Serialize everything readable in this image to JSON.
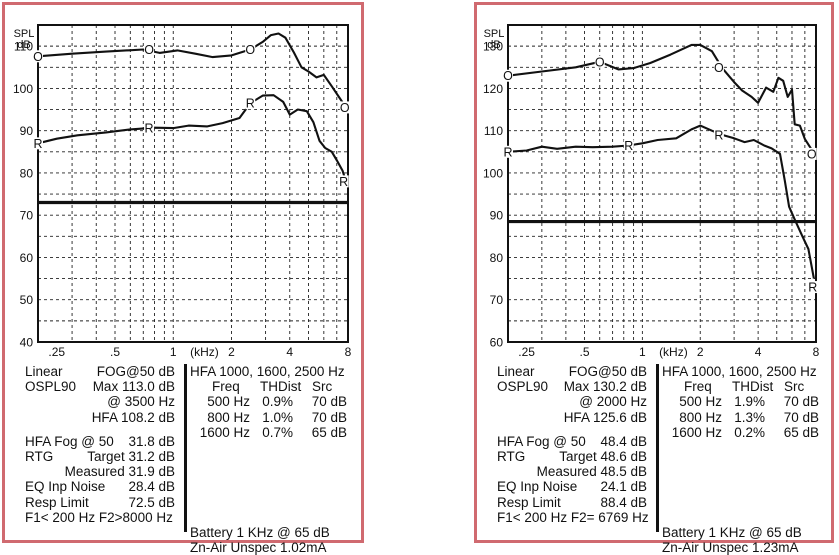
{
  "panels": [
    {
      "id": "left",
      "chart_data": {
        "type": "line",
        "ylabel": "SPL\ndB",
        "xlabel": "(kHz)",
        "xscale": "log",
        "xlim": [
          0.2,
          8
        ],
        "ylim": [
          40,
          115
        ],
        "y_ticks": [
          40,
          50,
          60,
          70,
          80,
          90,
          100,
          110
        ],
        "x_ticks": [
          {
            "value": 0.25,
            "label": ".25"
          },
          {
            "value": 0.5,
            "label": ".5"
          },
          {
            "value": 1,
            "label": "1"
          },
          {
            "value": 2,
            "label": "2"
          },
          {
            "value": 4,
            "label": "4"
          },
          {
            "value": 8,
            "label": "8"
          }
        ],
        "grid": true,
        "hline": 73,
        "series": [
          {
            "name": "O",
            "points": [
              [
                0.2,
                107.6
              ],
              [
                0.3,
                108.2
              ],
              [
                0.45,
                108.7
              ],
              [
                0.7,
                109.2
              ],
              [
                0.85,
                108.4
              ],
              [
                1.05,
                109.0
              ],
              [
                1.3,
                108.2
              ],
              [
                1.6,
                107.4
              ],
              [
                2.0,
                107.8
              ],
              [
                2.5,
                109.2
              ],
              [
                2.9,
                111.0
              ],
              [
                3.2,
                112.6
              ],
              [
                3.5,
                113.0
              ],
              [
                3.8,
                112.0
              ],
              [
                4.2,
                108.5
              ],
              [
                4.6,
                105.0
              ],
              [
                5.0,
                104.0
              ],
              [
                5.5,
                102.6
              ],
              [
                6.0,
                103.2
              ],
              [
                6.6,
                100.5
              ],
              [
                7.3,
                97.5
              ],
              [
                7.8,
                95.5
              ]
            ],
            "labels": [
              {
                "x": 0.2,
                "y": 107.6,
                "text": "O"
              },
              {
                "x": 0.75,
                "y": 109.2,
                "text": "O"
              },
              {
                "x": 2.5,
                "y": 109.2,
                "text": "O"
              },
              {
                "x": 7.7,
                "y": 95.5,
                "text": "O"
              }
            ]
          },
          {
            "name": "R",
            "points": [
              [
                0.2,
                87.0
              ],
              [
                0.25,
                88.1
              ],
              [
                0.32,
                88.9
              ],
              [
                0.45,
                89.6
              ],
              [
                0.6,
                90.3
              ],
              [
                0.8,
                90.7
              ],
              [
                1.0,
                90.6
              ],
              [
                1.2,
                91.2
              ],
              [
                1.5,
                91.0
              ],
              [
                1.8,
                91.8
              ],
              [
                2.2,
                93.0
              ],
              [
                2.5,
                96.5
              ],
              [
                2.9,
                98.3
              ],
              [
                3.3,
                98.4
              ],
              [
                3.7,
                96.8
              ],
              [
                4.0,
                93.8
              ],
              [
                4.4,
                95.0
              ],
              [
                4.9,
                94.6
              ],
              [
                5.3,
                92.0
              ],
              [
                5.7,
                87.6
              ],
              [
                6.1,
                85.9
              ],
              [
                6.6,
                85.0
              ],
              [
                7.0,
                83.0
              ],
              [
                7.5,
                80.5
              ],
              [
                7.8,
                78.0
              ]
            ],
            "labels": [
              {
                "x": 0.2,
                "y": 87.0,
                "text": "R"
              },
              {
                "x": 0.75,
                "y": 90.6,
                "text": "R"
              },
              {
                "x": 2.5,
                "y": 96.5,
                "text": "R"
              },
              {
                "x": 7.6,
                "y": 78.0,
                "text": "R"
              }
            ]
          }
        ]
      },
      "specs_left": [
        [
          "Linear",
          "FOG@50 dB"
        ],
        [
          "OSPL90",
          "Max 113.0 dB"
        ],
        [
          "",
          "@ 3500 Hz"
        ],
        [
          "",
          "HFA 108.2 dB"
        ],
        null,
        [
          "HFA Fog @ 50",
          "31.8 dB"
        ],
        [
          "RTG",
          "Target 31.2 dB"
        ],
        [
          "",
          "Measured 31.9 dB"
        ],
        [
          "EQ Inp Noise",
          "28.4 dB"
        ],
        [
          "Resp Limit",
          "72.5 dB"
        ],
        [
          "F1< 200 Hz F2>8000 Hz",
          ""
        ]
      ],
      "specs_right": {
        "hfa": "HFA 1000, 1600, 2500 Hz",
        "thd_headers": [
          "Freq",
          "THDist",
          "Src"
        ],
        "thd_rows": [
          [
            "500 Hz",
            "0.9%",
            "70 dB"
          ],
          [
            "800 Hz",
            "1.0%",
            "70 dB"
          ],
          [
            "1600 Hz",
            "0.7%",
            "65 dB"
          ]
        ],
        "battery_line1": "Battery 1 KHz  @ 65 dB",
        "battery_line2": "Zn-Air   Unspec  1.02mA"
      }
    },
    {
      "id": "right",
      "chart_data": {
        "type": "line",
        "ylabel": "SPL\ndB",
        "xlabel": "(kHz)",
        "xscale": "log",
        "xlim": [
          0.2,
          8
        ],
        "ylim": [
          60,
          135
        ],
        "y_ticks": [
          60,
          70,
          80,
          90,
          100,
          110,
          120,
          130
        ],
        "x_ticks": [
          {
            "value": 0.25,
            "label": ".25"
          },
          {
            "value": 0.5,
            "label": ".5"
          },
          {
            "value": 1,
            "label": "1"
          },
          {
            "value": 2,
            "label": "2"
          },
          {
            "value": 4,
            "label": "4"
          },
          {
            "value": 8,
            "label": "8"
          }
        ],
        "grid": true,
        "hline": 88.5,
        "series": [
          {
            "name": "O",
            "points": [
              [
                0.2,
                123.0
              ],
              [
                0.3,
                124.0
              ],
              [
                0.45,
                125.0
              ],
              [
                0.6,
                126.3
              ],
              [
                0.75,
                124.5
              ],
              [
                0.9,
                124.8
              ],
              [
                1.1,
                126.0
              ],
              [
                1.4,
                128.0
              ],
              [
                1.8,
                130.3
              ],
              [
                2.0,
                130.3
              ],
              [
                2.3,
                128.8
              ],
              [
                2.6,
                124.8
              ],
              [
                3.0,
                121.5
              ],
              [
                3.3,
                119.5
              ],
              [
                3.7,
                118.0
              ],
              [
                4.0,
                116.6
              ],
              [
                4.4,
                120.2
              ],
              [
                4.8,
                119.2
              ],
              [
                5.1,
                122.5
              ],
              [
                5.4,
                121.8
              ],
              [
                5.7,
                118.0
              ],
              [
                6.0,
                119.7
              ],
              [
                6.2,
                111.5
              ],
              [
                6.6,
                111.2
              ],
              [
                7.0,
                108.0
              ],
              [
                7.6,
                105.5
              ]
            ],
            "labels": [
              {
                "x": 0.2,
                "y": 123.0,
                "text": "O"
              },
              {
                "x": 0.6,
                "y": 126.3,
                "text": "O"
              },
              {
                "x": 2.5,
                "y": 125.0,
                "text": "O"
              },
              {
                "x": 7.6,
                "y": 104.5,
                "text": "O"
              }
            ]
          },
          {
            "name": "R",
            "points": [
              [
                0.2,
                105.0
              ],
              [
                0.25,
                105.3
              ],
              [
                0.3,
                106.2
              ],
              [
                0.36,
                105.7
              ],
              [
                0.45,
                106.2
              ],
              [
                0.55,
                106.1
              ],
              [
                0.7,
                106.2
              ],
              [
                0.85,
                106.5
              ],
              [
                1.0,
                107.0
              ],
              [
                1.2,
                107.8
              ],
              [
                1.5,
                108.2
              ],
              [
                1.8,
                110.3
              ],
              [
                2.0,
                111.2
              ],
              [
                2.3,
                110.0
              ],
              [
                2.6,
                109.0
              ],
              [
                3.0,
                108.2
              ],
              [
                3.4,
                107.3
              ],
              [
                3.8,
                107.8
              ],
              [
                4.3,
                106.5
              ],
              [
                4.7,
                105.8
              ],
              [
                5.2,
                104.5
              ],
              [
                5.5,
                98.3
              ],
              [
                5.8,
                92.0
              ],
              [
                6.2,
                89.0
              ],
              [
                6.8,
                85.0
              ],
              [
                7.3,
                82.0
              ],
              [
                7.8,
                75.0
              ]
            ],
            "labels": [
              {
                "x": 0.2,
                "y": 105.0,
                "text": "R"
              },
              {
                "x": 0.85,
                "y": 106.5,
                "text": "R"
              },
              {
                "x": 2.5,
                "y": 109.0,
                "text": "R"
              },
              {
                "x": 7.7,
                "y": 73.0,
                "text": "R"
              }
            ]
          }
        ]
      },
      "specs_left": [
        [
          "Linear",
          "FOG@50 dB"
        ],
        [
          "OSPL90",
          "Max 130.2 dB"
        ],
        [
          "",
          "@ 2000 Hz"
        ],
        [
          "",
          "HFA 125.6 dB"
        ],
        null,
        [
          "HFA Fog @ 50",
          "48.4 dB"
        ],
        [
          "RTG",
          "Target 48.6 dB"
        ],
        [
          "",
          "Measured 48.5 dB"
        ],
        [
          "EQ Inp Noise",
          "24.1 dB"
        ],
        [
          "Resp Limit",
          "88.4 dB"
        ],
        [
          "F1< 200 Hz F2= 6769 Hz",
          ""
        ]
      ],
      "specs_right": {
        "hfa": "HFA 1000, 1600, 2500 Hz",
        "thd_headers": [
          "Freq",
          "THDist",
          "Src"
        ],
        "thd_rows": [
          [
            "500 Hz",
            "1.9%",
            "70 dB"
          ],
          [
            "800 Hz",
            "1.3%",
            "70 dB"
          ],
          [
            "1600 Hz",
            "0.2%",
            "65 dB"
          ]
        ],
        "battery_line1": "Battery 1 KHz  @ 65 dB",
        "battery_line2": "Zn-Air   Unspec  1.23mA"
      }
    }
  ]
}
